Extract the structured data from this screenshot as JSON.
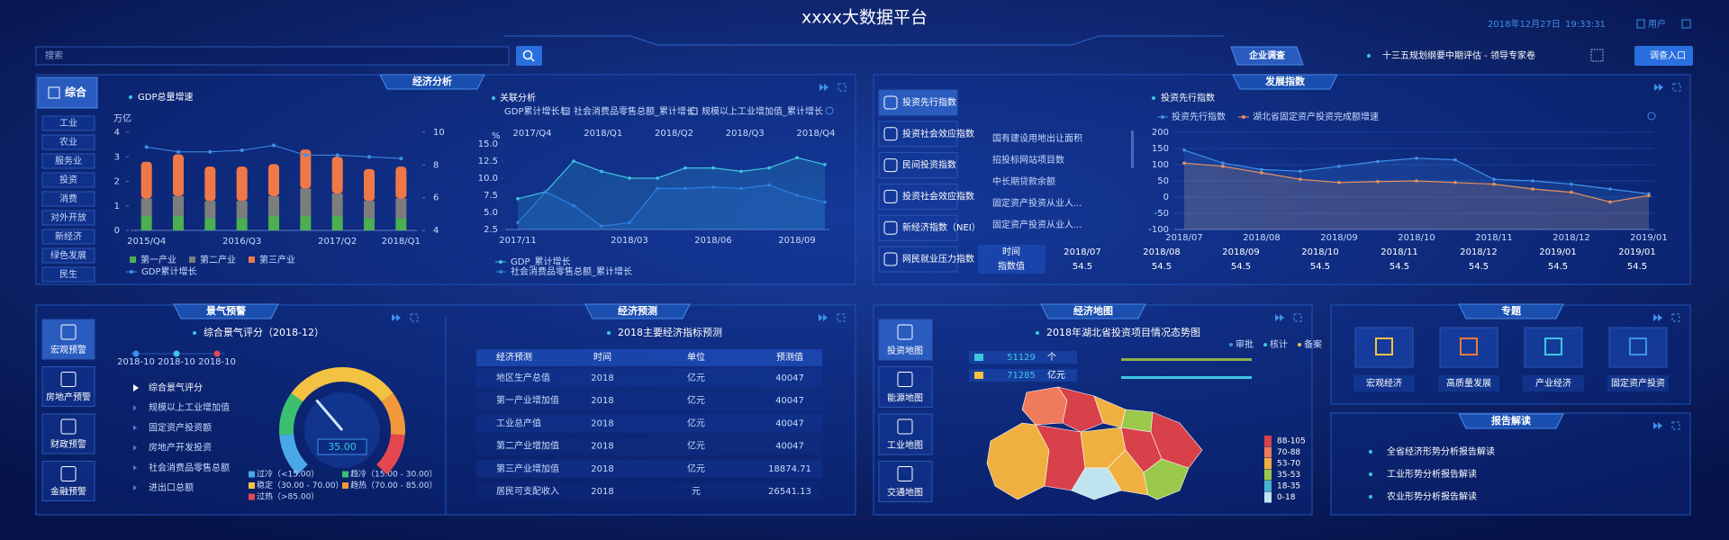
{
  "header": {
    "title": "xxxx大数据平台",
    "date": "2018年12月27日",
    "time": "19:33:31",
    "user": "用户"
  },
  "search": {
    "placeholder": "搜索"
  },
  "survey": {
    "tab": "企业调查",
    "notice": "十三五规划纲要中期评估 - 领导专家卷",
    "button": "调查入口"
  },
  "economy": {
    "tab": "经济分析",
    "menu": [
      "综合",
      "工业",
      "农业",
      "服务业",
      "投资",
      "消费",
      "对外开放",
      "新经济",
      "绿色发展",
      "民生"
    ]
  },
  "development": {
    "tab": "发展指数",
    "indices": [
      "投资先行指数",
      "投资社会效应指数",
      "民间投资指数",
      "投资社会效应指数",
      "新经济指数（NEI）",
      "网民就业压力指数"
    ],
    "indicators": [
      "国有建设用地出让面积",
      "招投标网站项目数",
      "中长期贷款余额",
      "固定资产投资从业人...",
      "固定资产投资从业人..."
    ],
    "table": {
      "row_headers": [
        "时间",
        "指数值"
      ],
      "times": [
        "2018/07",
        "2018/08",
        "2018/09",
        "2018/10",
        "2018/11",
        "2018/12",
        "2019/01",
        "2019/01"
      ],
      "values": [
        "54.5",
        "54.5",
        "54.5",
        "54.5",
        "54.5",
        "54.5",
        "54.5",
        "54.5"
      ]
    }
  },
  "warning": {
    "tab": "景气预警",
    "buttons": [
      "宏观预警",
      "房地产预警",
      "财政预警",
      "金融预警"
    ],
    "timeline": [
      "2018-10",
      "2018-10",
      "2018-10"
    ],
    "items": [
      "综合景气评分",
      "规模以上工业增加值",
      "固定资产投资额",
      "房地产开发投资",
      "社会消费品零售总额",
      "进出口总额"
    ]
  },
  "forecast": {
    "tab": "经济预测",
    "title": "2018主要经济指标预测",
    "columns": [
      "经济预测",
      "时间",
      "单位",
      "预测值"
    ],
    "rows": [
      [
        "地区生产总值",
        "2018",
        "亿元",
        "40047"
      ],
      [
        "第一产业增加值",
        "2018",
        "亿元",
        "40047"
      ],
      [
        "工业总产值",
        "2018",
        "亿元",
        "40047"
      ],
      [
        "第二产业增加值",
        "2018",
        "亿元",
        "40047"
      ],
      [
        "第三产业增加值",
        "2018",
        "亿元",
        "18874.71"
      ],
      [
        "居民可支配收入",
        "2018",
        "元",
        "26541.13"
      ]
    ]
  },
  "map": {
    "tab": "经济地图",
    "title": "2018年湖北省投资项目情况态势图",
    "legend": [
      "审批",
      "核计",
      "备案"
    ],
    "stats": [
      {
        "value": "51129",
        "unit": "个"
      },
      {
        "value": "71285",
        "unit": "亿元"
      }
    ],
    "buttons": [
      "投资地图",
      "能源地图",
      "工业地图",
      "交通地图"
    ],
    "scale": [
      {
        "label": "88-105",
        "color": "#d8404a"
      },
      {
        "label": "70-88",
        "color": "#ef7a5c"
      },
      {
        "label": "53-70",
        "color": "#f0b040"
      },
      {
        "label": "35-53",
        "color": "#9ac84a"
      },
      {
        "label": "18-35",
        "color": "#4ab0d0"
      },
      {
        "label": "0-18",
        "color": "#bfe4f0"
      }
    ]
  },
  "topics": {
    "tab": "专题",
    "items": [
      "宏观经济",
      "高质量发展",
      "产业经济",
      "固定资产投资"
    ]
  },
  "reports": {
    "tab": "报告解读",
    "items": [
      "全省经济形势分析报告解读",
      "工业形势分析报告解读",
      "农业形势分析报告解读"
    ]
  },
  "chart_data": [
    {
      "type": "bar",
      "title": "GDP总量增速",
      "y_label": "万亿",
      "categories": [
        "2015/Q4",
        null,
        null,
        "2016/Q3",
        null,
        null,
        "2017/Q2",
        null,
        "2018/Q1"
      ],
      "series": [
        {
          "name": "第一产业",
          "color": "#4caf50",
          "values": [
            0.6,
            0.6,
            0.5,
            0.5,
            0.6,
            0.6,
            0.6,
            0.5,
            0.5
          ]
        },
        {
          "name": "第二产业",
          "color": "#7d7d7d",
          "values": [
            0.7,
            0.8,
            0.7,
            0.7,
            0.8,
            1.1,
            0.9,
            0.7,
            0.8
          ]
        },
        {
          "name": "第三产业",
          "color": "#f07848",
          "values": [
            1.5,
            1.7,
            1.4,
            1.4,
            1.3,
            1.6,
            1.5,
            1.3,
            1.3
          ]
        },
        {
          "name": "GDP累计增长",
          "color": "#3f8fe8",
          "axis": "y2",
          "values": [
            9.1,
            8.8,
            8.8,
            8.9,
            9.2,
            8.6,
            8.6,
            8.5,
            8.4
          ]
        }
      ],
      "ylim": [
        0,
        4
      ],
      "yticks": [
        0,
        1,
        2,
        3,
        4
      ],
      "y2lim": [
        4,
        10
      ],
      "y2ticks": [
        4,
        6,
        8,
        10
      ],
      "grid": false
    },
    {
      "type": "area",
      "title": "关联分析",
      "selector": "GDP累计增长与",
      "options": [
        "社会消费品零售总额_累计增长",
        "规模以上工业增加值_累计增长"
      ],
      "y_label": "%",
      "top_categories": [
        "2017/Q4",
        "2018/Q1",
        "2018/Q2",
        "2018/Q3",
        "2018/Q4"
      ],
      "categories": [
        "2017/11",
        null,
        null,
        null,
        "2018/03",
        null,
        null,
        "2018/06",
        null,
        null,
        "2018/09",
        null
      ],
      "series": [
        {
          "name": "GDP_累计增长",
          "color": "#3ec6e0",
          "values": [
            7,
            8,
            12.5,
            11,
            10,
            10,
            11.5,
            11.5,
            11,
            11.5,
            13,
            12
          ]
        },
        {
          "name": "社会消费品零售总额_累计增长",
          "color": "#2f7fe0",
          "values": [
            3.5,
            8,
            6,
            3,
            3.5,
            8.5,
            8.5,
            8.7,
            8.5,
            9,
            7.5,
            6.5
          ]
        }
      ],
      "ylim": [
        2.5,
        15
      ],
      "yticks": [
        2.5,
        {
          "value": 5,
          "label": "5.0"
        },
        {
          "value": 7.5,
          "label": "7.5"
        },
        {
          "value": 10,
          "label": "10.0"
        },
        12.5,
        {
          "value": 15,
          "label": "15.0"
        }
      ],
      "grid": false
    },
    {
      "type": "area",
      "title": "投资先行指数",
      "categories": [
        "2018/07",
        null,
        "2018/08",
        null,
        "2018/09",
        null,
        "2018/10",
        null,
        "2018/11",
        null,
        "2018/12",
        null,
        "2019/01"
      ],
      "series": [
        {
          "name": "投资先行指数",
          "color": "#3f8fe8",
          "values": [
            145,
            105,
            85,
            80,
            95,
            110,
            120,
            115,
            55,
            50,
            40,
            25,
            10
          ]
        },
        {
          "name": "湖北省固定资产投资完成额增速",
          "color": "#e8915a",
          "values": [
            105,
            95,
            75,
            55,
            45,
            48,
            50,
            45,
            40,
            25,
            15,
            -15,
            5
          ]
        }
      ],
      "ylim": [
        -100,
        200
      ],
      "yticks": [
        200,
        150,
        100,
        50,
        0,
        -50,
        -100
      ],
      "grid": true
    },
    {
      "type": "gauge",
      "title": "综合景气评分（2018-12）",
      "values": [
        35
      ],
      "value_labels": [
        "35.00"
      ],
      "ylim": [
        0,
        100
      ],
      "bands": [
        {
          "name": "过冷（<15.00）",
          "color": "#4aa8e8",
          "range": [
            0,
            15
          ]
        },
        {
          "name": "趋冷（15.00 - 30.00）",
          "color": "#3cc070",
          "range": [
            15,
            30
          ]
        },
        {
          "name": "稳定（30.00 - 70.00）",
          "color": "#f3c242",
          "range": [
            30,
            70
          ]
        },
        {
          "name": "趋热（70.00 - 85.00）",
          "color": "#f0983a",
          "range": [
            70,
            85
          ]
        },
        {
          "name": "过热（>85.00）",
          "color": "#e5474f",
          "range": [
            85,
            100
          ]
        }
      ]
    }
  ]
}
